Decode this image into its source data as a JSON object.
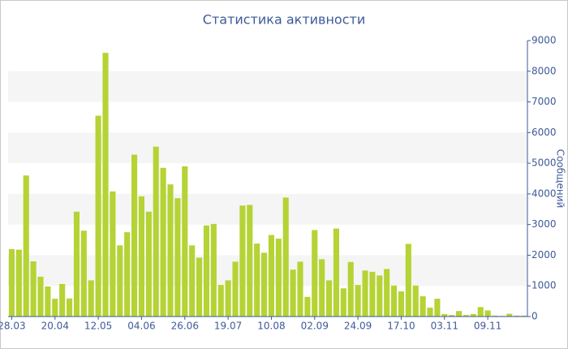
{
  "chart_data": {
    "type": "bar",
    "title": "Статистика активности",
    "y_axis_label": "Сообщений",
    "categories": [
      "28.03",
      null,
      null,
      null,
      null,
      null,
      "20.04",
      null,
      null,
      null,
      null,
      null,
      "12.05",
      null,
      null,
      null,
      null,
      null,
      "04.06",
      null,
      null,
      null,
      null,
      null,
      "26.06",
      null,
      null,
      null,
      null,
      null,
      "19.07",
      null,
      null,
      null,
      null,
      null,
      "10.08",
      null,
      null,
      null,
      null,
      null,
      "02.09",
      null,
      null,
      null,
      null,
      null,
      "24.09",
      null,
      null,
      null,
      null,
      null,
      "17.10",
      null,
      null,
      null,
      null,
      null,
      "03.11",
      null,
      null,
      null,
      null,
      null,
      "09.11",
      null,
      null,
      null,
      null,
      null
    ],
    "values": [
      2200,
      2180,
      4600,
      1800,
      1300,
      980,
      580,
      1060,
      590,
      3420,
      2800,
      1180,
      6550,
      8600,
      4080,
      2320,
      2750,
      5280,
      3920,
      3420,
      5540,
      4850,
      4310,
      3860,
      4900,
      2320,
      1920,
      2970,
      3020,
      1030,
      1180,
      1790,
      3620,
      3640,
      2380,
      2080,
      2660,
      2540,
      3880,
      1530,
      1790,
      640,
      2820,
      1870,
      1180,
      2870,
      920,
      1780,
      1030,
      1500,
      1460,
      1340,
      1550,
      1010,
      820,
      2370,
      1010,
      660,
      290,
      580,
      80,
      50,
      180,
      50,
      80,
      310,
      200,
      30,
      20,
      90,
      30,
      30
    ],
    "color": "#b5d334",
    "ylim": [
      0,
      9000
    ],
    "yticks": [
      0,
      1000,
      2000,
      3000,
      4000,
      5000,
      6000,
      7000,
      8000,
      9000
    ],
    "grid": "bands",
    "y_axis_side": "right"
  }
}
